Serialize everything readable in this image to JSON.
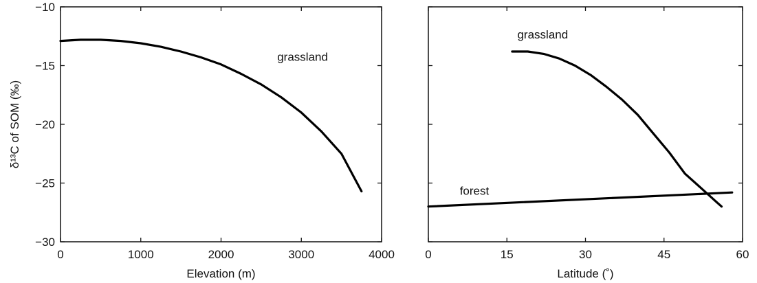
{
  "chart_data": [
    {
      "type": "line",
      "title": "",
      "xlabel": "Elevation (m)",
      "ylabel": "δ¹³C of SOM (‰)",
      "xlim": [
        0,
        4000
      ],
      "ylim": [
        -30,
        -10
      ],
      "xticks": [
        0,
        1000,
        2000,
        3000,
        4000
      ],
      "yticks": [
        -10,
        -15,
        -20,
        -25,
        -30
      ],
      "xtick_labels": [
        "0",
        "1000",
        "2000",
        "3000",
        "4000"
      ],
      "ytick_labels": [
        "−10",
        "−15",
        "−20",
        "−25",
        "−30"
      ],
      "grid": false,
      "series": [
        {
          "name": "grassland",
          "x": [
            0,
            250,
            500,
            750,
            1000,
            1250,
            1500,
            1750,
            2000,
            2250,
            2500,
            2750,
            3000,
            3250,
            3500,
            3750
          ],
          "y": [
            -12.9,
            -12.8,
            -12.8,
            -12.9,
            -13.1,
            -13.4,
            -13.8,
            -14.3,
            -14.9,
            -15.7,
            -16.6,
            -17.7,
            -19.0,
            -20.6,
            -22.5,
            -25.7
          ]
        }
      ],
      "annotations": [
        {
          "text": "grassland",
          "x": 2700,
          "y": -14.6
        }
      ]
    },
    {
      "type": "line",
      "title": "",
      "xlabel": "Latitude (˚)",
      "ylabel": "",
      "xlim": [
        0,
        60
      ],
      "ylim": [
        -30,
        -10
      ],
      "xticks": [
        0,
        15,
        30,
        45,
        60
      ],
      "yticks": [
        -10,
        -15,
        -20,
        -25,
        -30
      ],
      "xtick_labels": [
        "0",
        "15",
        "30",
        "45",
        "60"
      ],
      "ytick_labels": [],
      "grid": false,
      "series": [
        {
          "name": "grassland",
          "x": [
            16,
            19,
            22,
            25,
            28,
            31,
            34,
            37,
            40,
            43,
            46,
            49,
            52,
            55,
            56
          ],
          "y": [
            -13.8,
            -13.8,
            -14.0,
            -14.4,
            -15.0,
            -15.8,
            -16.8,
            -17.9,
            -19.2,
            -20.8,
            -22.4,
            -24.2,
            -25.4,
            -26.6,
            -27.0
          ]
        },
        {
          "name": "forest",
          "x": [
            0,
            58
          ],
          "y": [
            -27.0,
            -25.8
          ]
        }
      ],
      "annotations": [
        {
          "text": "grassland",
          "x": 17,
          "y": -12.7
        },
        {
          "text": "forest",
          "x": 6,
          "y": -26.0
        }
      ]
    }
  ]
}
